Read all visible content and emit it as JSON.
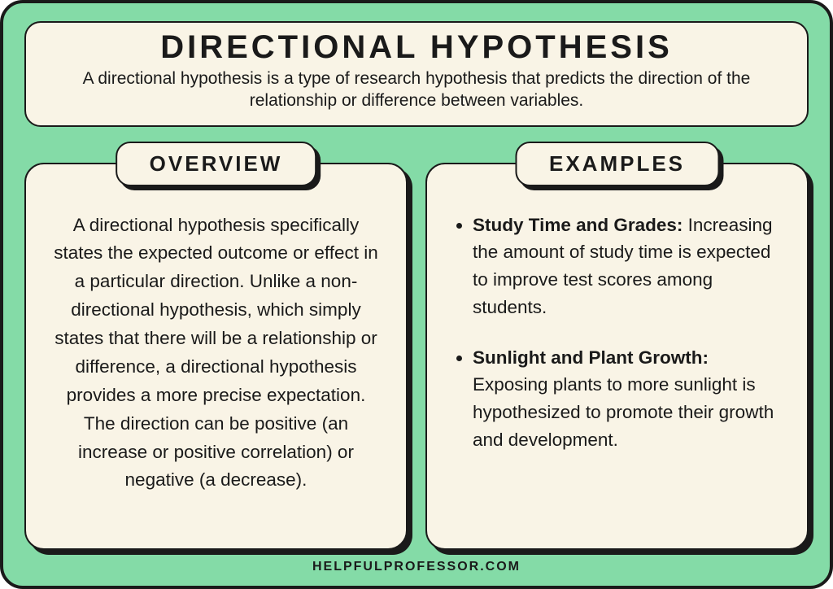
{
  "colors": {
    "background": "#84dba7",
    "card": "#f9f4e6",
    "border": "#1a1a1a",
    "text": "#1a1a1a"
  },
  "header": {
    "title": "DIRECTIONAL HYPOTHESIS",
    "subtitle": "A directional hypothesis is a type of research hypothesis that predicts the direction of the relationship or difference between variables."
  },
  "overview": {
    "label": "OVERVIEW",
    "body": "A directional hypothesis specifically states the expected outcome or effect in a particular direction. Unlike a non-directional hypothesis, which simply states that there will be a relationship or difference, a directional hypothesis provides a more precise expectation. The direction can be positive (an increase or positive correlation) or negative (a decrease)."
  },
  "examples": {
    "label": "EXAMPLES",
    "items": [
      {
        "title": "Study Time and Grades:",
        "body": "Increasing the amount of study time is expected to improve test scores among students."
      },
      {
        "title": "Sunlight and Plant Growth:",
        "body": "Exposing plants to more sunlight is hypothesized to promote their growth and development."
      }
    ]
  },
  "footer": "HELPFULPROFESSOR.COM"
}
